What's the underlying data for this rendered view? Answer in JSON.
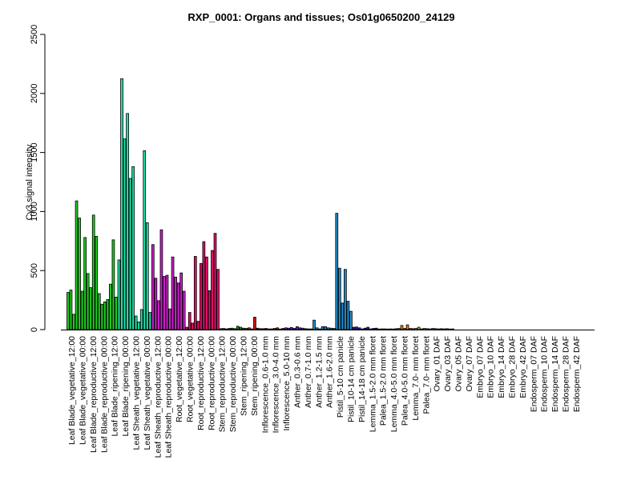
{
  "chart_data": {
    "type": "bar",
    "title": "RXP_0001: Organs and tissues; Os01g0650200_24129",
    "ylabel": "Cy3 signal intensity",
    "xlabel": "",
    "ylim": [
      0,
      2500
    ],
    "yticks": [
      0,
      500,
      1000,
      1500,
      2000,
      2500
    ],
    "grid": false,
    "groups": [
      {
        "color": "#1fcc1f",
        "values": [
          315,
          335,
          130,
          1090,
          945,
          325,
          780,
          475,
          355,
          970,
          790,
          305,
          215,
          235,
          255,
          385,
          760,
          275
        ]
      },
      {
        "color": "#1fe0a8",
        "values": [
          590,
          2125,
          1615,
          1830,
          1280,
          1380,
          115,
          65,
          170,
          1515,
          905,
          145
        ]
      },
      {
        "color": "#cc1fcc",
        "values": [
          720,
          435,
          245,
          845,
          450,
          460,
          175,
          615,
          445,
          395,
          480,
          325
        ]
      },
      {
        "color": "#e0106a",
        "values": [
          20,
          145,
          55,
          620,
          70,
          560,
          745,
          615,
          330,
          670,
          815,
          510
        ]
      },
      {
        "color": "#1a8c1a",
        "values": [
          8,
          10,
          6,
          10,
          12,
          8,
          28,
          20,
          12
        ]
      },
      {
        "color": "#cc1010",
        "values": [
          10,
          15,
          6,
          105,
          12,
          8,
          8,
          10,
          6,
          6,
          10,
          15
        ]
      },
      {
        "color": "#7a1fcc",
        "values": [
          5,
          10,
          15,
          12,
          18,
          10,
          25,
          15,
          12
        ]
      },
      {
        "color": "#1f8ccc",
        "values": [
          8,
          6,
          6,
          80,
          15,
          6,
          25,
          25,
          15,
          12,
          10,
          985,
          520,
          225,
          510,
          240,
          155
        ]
      },
      {
        "color": "#1f1fcc",
        "values": [
          20,
          22,
          15,
          6,
          12,
          20,
          6,
          10,
          12
        ]
      },
      {
        "color": "#e08010",
        "values": [
          5,
          6,
          6,
          5,
          6,
          5,
          8,
          10,
          35,
          10,
          40,
          10
        ]
      },
      {
        "color": "#b8a840",
        "values": [
          8,
          10,
          20,
          6,
          10,
          8,
          6,
          10,
          8,
          6,
          8,
          6,
          8,
          5,
          6
        ]
      }
    ],
    "categories": [
      "Leaf Blade_vegetative_12:00",
      "Leaf Blade_vegetative_00:00",
      "Leaf Blade_reproductive_12:00",
      "Leaf Blade_reproductive_00:00",
      "Leaf Blade_ripening_12:00",
      "Leaf Blade_ripening_00:00",
      "Leaf Sheath_vegetative_12:00",
      "Leaf Sheath_vegetative_00:00",
      "Leaf Sheath_reproductive_12:00",
      "Leaf Sheath_reproductive_00:00",
      "Root_vegetative_12:00",
      "Root_vegetative_00:00",
      "Root_reproductive_12:00",
      "Root_reproductive_00:00",
      "Stem_reproductive_12:00",
      "Stem_reproductive_00:00",
      "Stem_ripening_12:00",
      "Stem_ripening_00:00",
      "Inflorescence_0.6-1.0 mm",
      "Inflorescence_3.0-4.0 mm",
      "Inflorescence_5.0-10 mm",
      "Anther_0.3-0.6 mm",
      "Anther_0.7-1.0 mm",
      "Anther_1.2-1.5 mm",
      "Anther_1.6-2.0 mm",
      "Pistil_5-10 cm panicle",
      "Pistil_10-14 cm panicle",
      "Pistil_14-18 cm panicle",
      "Lemma_1.5-2.0 mm floret",
      "Palea_1.5-2.0 mm floret",
      "Lemma_4.0-5.0 mm floret",
      "Palea_4.0-5.0 mm floret",
      "Lemma_7.0- mm floret",
      "Palea_7.0- mm floret",
      "Ovary_01 DAF",
      "Ovary_03 DAF",
      "Ovary_05 DAF",
      "Ovary_07 DAF",
      "Embryo_07 DAF",
      "Embryo_10 DAF",
      "Embryo_14 DAF",
      "Embryo_28 DAF",
      "Embryo_42 DAF",
      "Endosperm_07 DAF",
      "Endosperm_10 DAF",
      "Endosperm_14 DAF",
      "Endosperm_28 DAF",
      "Endosperm_42 DAF"
    ]
  }
}
